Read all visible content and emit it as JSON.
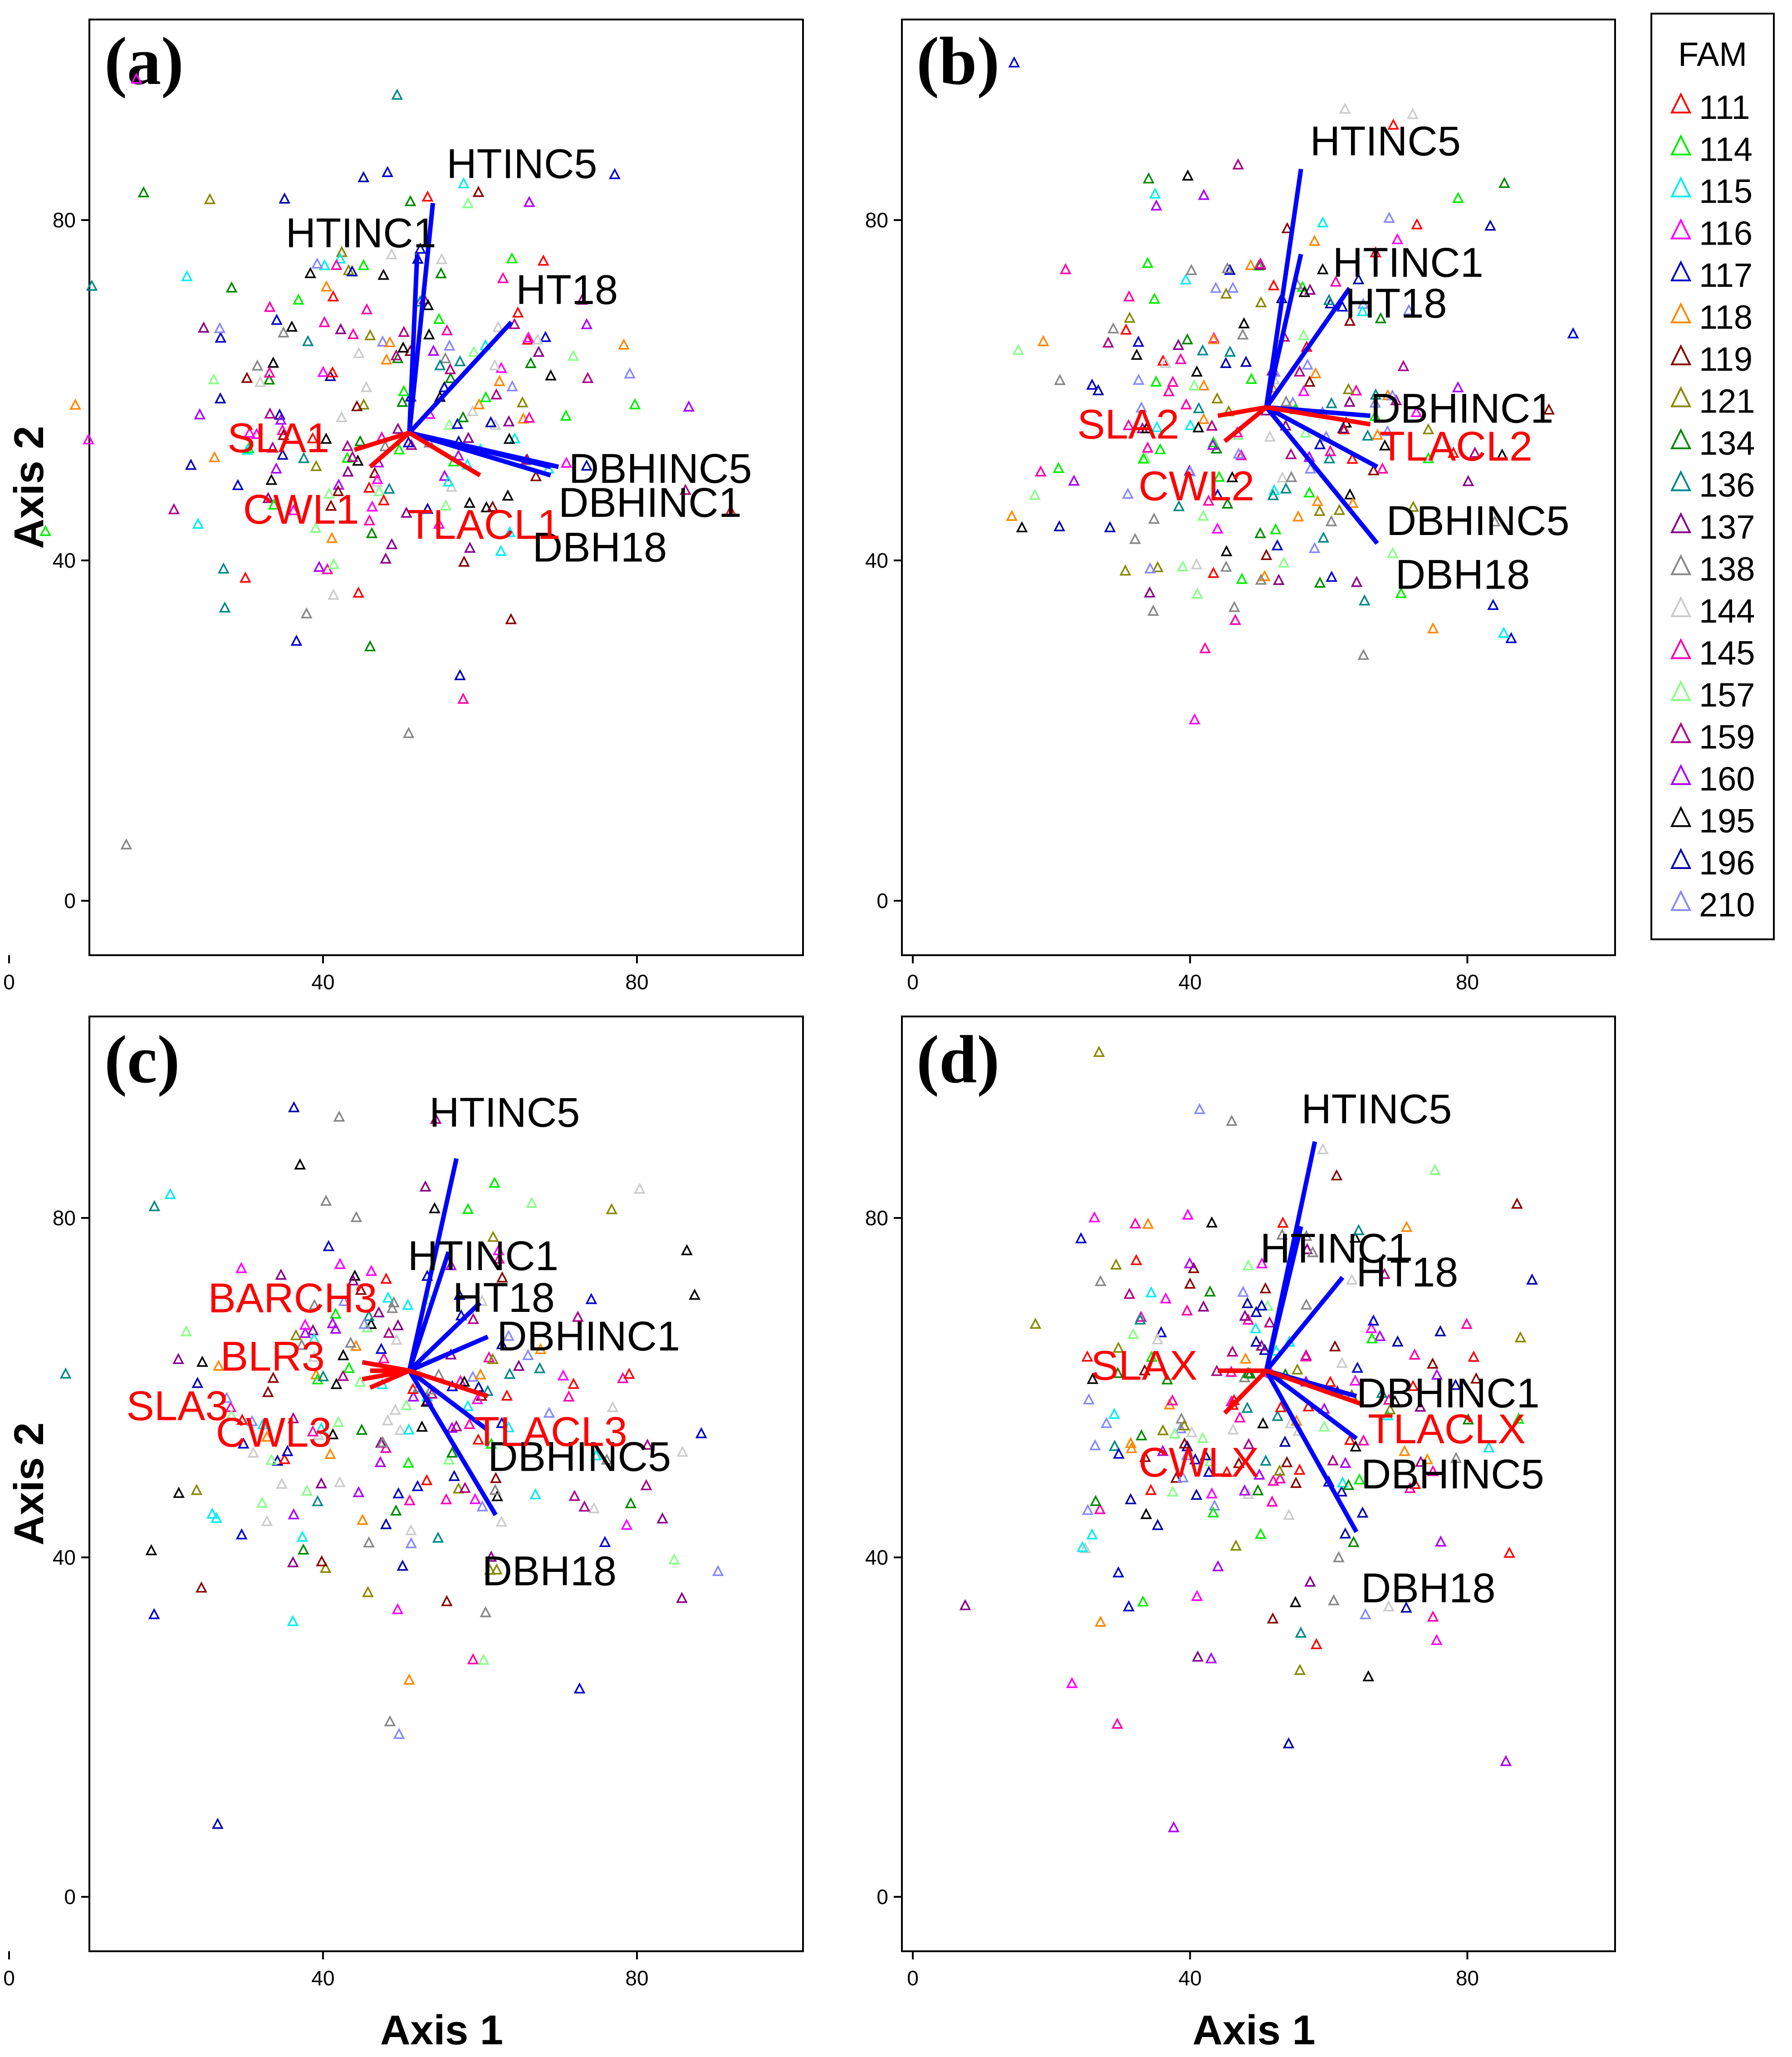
{
  "figure": {
    "x_axis_title": "Axis 1",
    "y_axis_title": "Axis 2"
  },
  "legend": {
    "title": "FAM",
    "families": [
      "111",
      "114",
      "115",
      "116",
      "117",
      "118",
      "119",
      "121",
      "134",
      "136",
      "137",
      "138",
      "144",
      "145",
      "157",
      "159",
      "160",
      "195",
      "196",
      "210"
    ],
    "colors": [
      "#ff0000",
      "#00ee00",
      "#00eeee",
      "#ff00ff",
      "#0000cc",
      "#ff8800",
      "#880000",
      "#888800",
      "#008800",
      "#008888",
      "#880088",
      "#888888",
      "#cccccc",
      "#ff00aa",
      "#88ff88",
      "#aa0088",
      "#aa00ff",
      "#000000",
      "#0000aa",
      "#8888ff"
    ]
  },
  "chart_data": [
    {
      "panel": "(a)",
      "type": "scatter",
      "xlim": [
        0,
        100
      ],
      "ylim": [
        0,
        100
      ],
      "xticks": [
        "0",
        "40",
        "80"
      ],
      "yticks": [
        "0",
        "40",
        "80"
      ],
      "xlabel": "",
      "ylabel": "Axis 2",
      "origin": [
        51,
        55
      ],
      "vectors": [
        {
          "label": "HTINC5",
          "color": "#0000ff",
          "end": [
            54,
            82
          ]
        },
        {
          "label": "HTINC1",
          "color": "#0000ff",
          "end": [
            52,
            76
          ]
        },
        {
          "label": "HT18",
          "color": "#0000ff",
          "end": [
            64,
            68
          ]
        },
        {
          "label": "DBHINC5",
          "color": "#0000ff",
          "end": [
            69,
            51
          ]
        },
        {
          "label": "DBHINC1",
          "color": "#0000ff",
          "end": [
            70,
            51
          ]
        },
        {
          "label": "DBH18",
          "color": "#0000ff",
          "end": [
            69,
            50
          ]
        },
        {
          "label": "SLA1",
          "color": "#ff0000",
          "end": [
            44,
            53
          ]
        },
        {
          "label": "CWL1",
          "color": "#ff0000",
          "end": [
            46,
            51
          ]
        },
        {
          "label": "TLACL1",
          "color": "#ff0000",
          "end": [
            60,
            50
          ]
        }
      ]
    },
    {
      "panel": "(b)",
      "type": "scatter",
      "xlim": [
        0,
        100
      ],
      "ylim": [
        0,
        100
      ],
      "xticks": [
        "0",
        "40",
        "80"
      ],
      "yticks": [
        "0",
        "40",
        "80"
      ],
      "xlabel": "",
      "ylabel": "",
      "origin": [
        51,
        58
      ],
      "vectors": [
        {
          "label": "HTINC5",
          "color": "#0000ff",
          "end": [
            56,
            86
          ]
        },
        {
          "label": "HTINC1",
          "color": "#0000ff",
          "end": [
            56,
            76
          ]
        },
        {
          "label": "HT18",
          "color": "#0000ff",
          "end": [
            63,
            72
          ]
        },
        {
          "label": "DBHINC1",
          "color": "#0000ff",
          "end": [
            66,
            57
          ]
        },
        {
          "label": "DBHINC5",
          "color": "#0000ff",
          "end": [
            67,
            51
          ]
        },
        {
          "label": "DBH18",
          "color": "#0000ff",
          "end": [
            67,
            42
          ]
        },
        {
          "label": "TLACL2",
          "color": "#ff0000",
          "end": [
            66,
            56
          ]
        },
        {
          "label": "SLA2",
          "color": "#ff0000",
          "end": [
            44,
            57
          ]
        },
        {
          "label": "CWL2",
          "color": "#ff0000",
          "end": [
            45,
            54
          ]
        }
      ]
    },
    {
      "panel": "(c)",
      "type": "scatter",
      "xlim": [
        0,
        100
      ],
      "ylim": [
        0,
        100
      ],
      "xticks": [
        "0",
        "40",
        "80"
      ],
      "yticks": [
        "0",
        "40",
        "80"
      ],
      "xlabel": "Axis 1",
      "ylabel": "Axis 2",
      "origin": [
        51,
        62
      ],
      "vectors": [
        {
          "label": "HTINC5",
          "color": "#0000ff",
          "end": [
            57,
            87
          ]
        },
        {
          "label": "HTINC1",
          "color": "#0000ff",
          "end": [
            56,
            76
          ]
        },
        {
          "label": "HT18",
          "color": "#0000ff",
          "end": [
            60,
            70
          ]
        },
        {
          "label": "DBHINC1",
          "color": "#0000ff",
          "end": [
            61,
            66
          ]
        },
        {
          "label": "DBHINC5",
          "color": "#0000ff",
          "end": [
            61,
            55
          ]
        },
        {
          "label": "DBH18",
          "color": "#0000ff",
          "end": [
            62,
            45
          ]
        },
        {
          "label": "TLACL3",
          "color": "#ff0000",
          "end": [
            61,
            59
          ]
        },
        {
          "label": "BARCH3",
          "color": "#ff0000",
          "end": [
            45,
            63
          ]
        },
        {
          "label": "BLR3",
          "color": "#ff0000",
          "end": [
            46,
            62
          ]
        },
        {
          "label": "SLA3",
          "color": "#ff0000",
          "end": [
            45,
            61
          ]
        },
        {
          "label": "CWL3",
          "color": "#ff0000",
          "end": [
            46,
            60
          ]
        }
      ]
    },
    {
      "panel": "(d)",
      "type": "scatter",
      "xlim": [
        0,
        100
      ],
      "ylim": [
        0,
        100
      ],
      "xticks": [
        "0",
        "40",
        "80"
      ],
      "yticks": [
        "0",
        "40",
        "80"
      ],
      "xlabel": "Axis 1",
      "ylabel": "",
      "origin": [
        51,
        62
      ],
      "vectors": [
        {
          "label": "HTINC5",
          "color": "#0000ff",
          "end": [
            58,
            89
          ]
        },
        {
          "label": "HTINC1",
          "color": "#0000ff",
          "end": [
            56,
            79
          ]
        },
        {
          "label": "HT18",
          "color": "#0000ff",
          "end": [
            62,
            73
          ]
        },
        {
          "label": "DBHINC1",
          "color": "#0000ff",
          "end": [
            64,
            59
          ]
        },
        {
          "label": "DBHINC5",
          "color": "#0000ff",
          "end": [
            64,
            54
          ]
        },
        {
          "label": "DBH18",
          "color": "#0000ff",
          "end": [
            64,
            43
          ]
        },
        {
          "label": "TLACLX",
          "color": "#ff0000",
          "end": [
            65,
            58
          ]
        },
        {
          "label": "SLAX",
          "color": "#ff0000",
          "end": [
            44,
            62
          ]
        },
        {
          "label": "CWLX",
          "color": "#ff0000",
          "end": [
            45,
            57
          ]
        }
      ]
    }
  ]
}
